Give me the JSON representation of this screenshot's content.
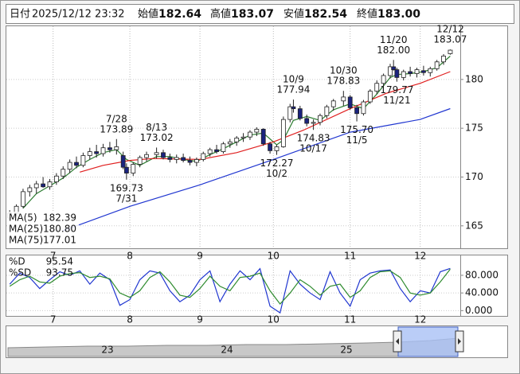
{
  "header": {
    "items": [
      {
        "label": "日付",
        "value": "2025/12/12 23:32",
        "color": "#111111"
      },
      {
        "label": "始値",
        "value": "182.64",
        "color": "#111111"
      },
      {
        "label": "高値",
        "value": "183.07",
        "color": "#d01818"
      },
      {
        "label": "安値",
        "value": "182.54",
        "color": "#1a8a1a"
      },
      {
        "label": "終値",
        "value": "183.00",
        "color": "#111111"
      }
    ]
  },
  "chart_data": [
    {
      "type": "candlestick",
      "xlim": [
        -14,
        122
      ],
      "xticks": [
        {
          "value": 0,
          "label": "7"
        },
        {
          "value": 23,
          "label": "8"
        },
        {
          "value": 44,
          "label": "9"
        },
        {
          "value": 66,
          "label": "10"
        },
        {
          "value": 89,
          "label": "11"
        },
        {
          "value": 110,
          "label": "12"
        }
      ],
      "ylim": [
        162.7,
        185.45
      ],
      "yticks": [
        165,
        170,
        175,
        180
      ],
      "grid": true,
      "up_color": "#ffffff",
      "down_color": "#1a237e",
      "x": [
        -13,
        -11,
        -9,
        -7,
        -5,
        -3,
        -1,
        1,
        3,
        5,
        7,
        9,
        11,
        13,
        15,
        17,
        19,
        21,
        22,
        24,
        26,
        28,
        31,
        33,
        35,
        37,
        39,
        41,
        43,
        45,
        47,
        49,
        51,
        53,
        55,
        57,
        59,
        61,
        63,
        65,
        67,
        69,
        71,
        72,
        74,
        76,
        78,
        80,
        82,
        84,
        87,
        89,
        91,
        93,
        95,
        97,
        99,
        101,
        102,
        103,
        105,
        107,
        109,
        111,
        113,
        115,
        117,
        119
      ],
      "open": [
        165.8,
        166.3,
        167.0,
        168.5,
        168.9,
        169.3,
        169.0,
        169.5,
        170.1,
        170.8,
        171.5,
        171.2,
        172.2,
        172.6,
        172.4,
        173.0,
        172.8,
        172.2,
        171.0,
        170.4,
        171.3,
        172.0,
        172.3,
        172.5,
        172.0,
        171.8,
        172.0,
        171.7,
        171.5,
        171.8,
        172.4,
        172.8,
        172.6,
        173.4,
        173.6,
        174.0,
        174.1,
        174.6,
        174.9,
        173.4,
        172.7,
        173.1,
        175.9,
        177.2,
        177.0,
        176.0,
        175.5,
        175.6,
        176.3,
        177.2,
        177.8,
        178.2,
        177.1,
        176.5,
        177.7,
        178.8,
        179.6,
        180.4,
        181.3,
        181.0,
        180.2,
        180.8,
        180.6,
        180.9,
        180.7,
        181.1,
        181.8,
        182.64
      ],
      "high": [
        166.6,
        167.2,
        168.8,
        169.2,
        169.6,
        170.0,
        169.8,
        170.4,
        171.1,
        171.8,
        172.1,
        172.5,
        173.0,
        173.3,
        173.4,
        173.6,
        173.89,
        172.6,
        171.4,
        171.5,
        172.2,
        172.6,
        173.02,
        172.8,
        172.4,
        172.3,
        172.4,
        172.1,
        172.0,
        172.6,
        173.0,
        173.3,
        173.6,
        173.9,
        174.2,
        174.5,
        174.8,
        175.1,
        175.0,
        173.6,
        173.3,
        176.2,
        177.5,
        177.94,
        177.3,
        176.4,
        175.9,
        176.5,
        177.4,
        178.0,
        178.83,
        178.4,
        177.4,
        177.9,
        179.0,
        179.9,
        180.6,
        181.6,
        182.0,
        181.2,
        181.0,
        181.3,
        181.2,
        181.4,
        181.3,
        182.0,
        182.6,
        183.07
      ],
      "low": [
        165.5,
        166.0,
        166.8,
        168.0,
        168.3,
        168.9,
        168.7,
        169.2,
        169.8,
        170.4,
        170.9,
        171.0,
        171.8,
        172.0,
        172.1,
        172.5,
        172.3,
        170.8,
        169.73,
        170.1,
        171.0,
        171.6,
        171.9,
        171.8,
        171.5,
        171.4,
        171.5,
        171.2,
        171.1,
        171.6,
        172.1,
        172.4,
        172.4,
        173.0,
        173.2,
        173.6,
        173.8,
        174.2,
        173.2,
        172.4,
        172.27,
        173.0,
        175.6,
        176.6,
        175.8,
        175.2,
        174.83,
        175.3,
        176.0,
        176.8,
        177.3,
        176.9,
        175.7,
        176.3,
        177.5,
        178.5,
        179.3,
        180.1,
        180.9,
        179.77,
        179.9,
        180.3,
        180.2,
        180.4,
        180.3,
        180.9,
        181.5,
        182.54
      ],
      "close": [
        166.3,
        167.0,
        168.5,
        168.9,
        169.3,
        169.0,
        169.5,
        170.1,
        170.8,
        171.5,
        171.2,
        172.2,
        172.6,
        172.4,
        173.0,
        172.8,
        173.1,
        171.0,
        170.4,
        171.3,
        172.0,
        172.3,
        172.5,
        172.0,
        171.8,
        172.0,
        171.7,
        171.5,
        171.8,
        172.4,
        172.8,
        172.6,
        173.4,
        173.6,
        174.0,
        174.1,
        174.6,
        174.9,
        173.4,
        172.7,
        173.1,
        175.9,
        177.2,
        177.0,
        176.0,
        175.5,
        175.6,
        176.3,
        177.2,
        177.8,
        178.2,
        177.1,
        176.5,
        177.7,
        178.8,
        179.6,
        180.4,
        181.3,
        181.0,
        180.2,
        180.8,
        180.6,
        181.0,
        180.7,
        181.1,
        181.8,
        182.4,
        183.0
      ],
      "series": [
        {
          "name": "MA(5)",
          "color": "#2e7d32",
          "legend_value": "182.39",
          "x": [
            -9,
            -5,
            -1,
            3,
            7,
            11,
            15,
            19,
            22,
            26,
            31,
            35,
            39,
            43,
            47,
            51,
            55,
            59,
            63,
            67,
            69,
            72,
            76,
            80,
            84,
            89,
            93,
            97,
            101,
            103,
            107,
            111,
            115,
            119
          ],
          "values": [
            166.8,
            168.3,
            169.1,
            169.9,
            171.0,
            171.8,
            172.5,
            172.8,
            171.8,
            171.2,
            172.1,
            172.1,
            171.8,
            171.6,
            172.3,
            172.9,
            173.6,
            174.3,
            174.5,
            173.3,
            173.8,
            175.8,
            176.2,
            175.8,
            176.9,
            177.5,
            177.0,
            178.5,
            180.2,
            180.5,
            180.6,
            180.8,
            181.2,
            182.39
          ]
        },
        {
          "name": "MA(25)",
          "color": "#e02020",
          "legend_value": "180.80",
          "x": [
            8,
            15,
            23,
            30,
            44,
            55,
            66,
            75,
            89,
            100,
            110,
            119
          ],
          "values": [
            170.5,
            171.2,
            171.7,
            171.9,
            171.8,
            172.5,
            173.6,
            174.8,
            177.0,
            178.6,
            179.6,
            180.8
          ]
        },
        {
          "name": "MA(75)",
          "color": "#2036d0",
          "legend_value": "177.01",
          "x": [
            3,
            23,
            44,
            66,
            89,
            110,
            119
          ],
          "values": [
            164.5,
            167.0,
            169.2,
            171.8,
            174.6,
            175.9,
            177.01
          ]
        }
      ],
      "annotations": [
        {
          "date": "7/28",
          "value": 173.89,
          "x": 19,
          "position": "above"
        },
        {
          "date": "7/31",
          "value": 169.73,
          "x": 22,
          "position": "below"
        },
        {
          "date": "8/13",
          "value": 173.02,
          "x": 31,
          "position": "above"
        },
        {
          "date": "10/2",
          "value": 172.27,
          "x": 67,
          "position": "below"
        },
        {
          "date": "10/9",
          "value": 177.94,
          "x": 72,
          "position": "above"
        },
        {
          "date": "10/17",
          "value": 174.83,
          "x": 78,
          "position": "below"
        },
        {
          "date": "10/30",
          "value": 178.83,
          "x": 87,
          "position": "above"
        },
        {
          "date": "11/5",
          "value": 175.7,
          "value_label": "175.70",
          "x": 91,
          "position": "below"
        },
        {
          "date": "11/20",
          "value": 182,
          "value_label": "182.00",
          "x": 102,
          "position": "above"
        },
        {
          "date": "11/21",
          "value": 179.77,
          "x": 103,
          "position": "below"
        },
        {
          "date": "12/12",
          "value": 183.07,
          "x": 119,
          "position": "above"
        }
      ]
    },
    {
      "type": "line",
      "xlim": [
        -14,
        122
      ],
      "ylim": [
        -12,
        125
      ],
      "yticks": [
        {
          "value": 0,
          "label": "0.000"
        },
        {
          "value": 40,
          "label": "40.000"
        },
        {
          "value": 80,
          "label": "80.000"
        }
      ],
      "grid": true,
      "x": [
        -13,
        -10,
        -7,
        -4,
        -1,
        2,
        5,
        8,
        11,
        14,
        17,
        20,
        23,
        26,
        29,
        32,
        35,
        38,
        41,
        44,
        47,
        50,
        53,
        56,
        59,
        62,
        65,
        68,
        71,
        74,
        77,
        80,
        83,
        86,
        89,
        92,
        95,
        98,
        101,
        104,
        107,
        110,
        113,
        116,
        119
      ],
      "series": [
        {
          "name": "%D",
          "color": "#2036d0",
          "legend_value": "95.54",
          "values": [
            60,
            85,
            75,
            50,
            70,
            88,
            80,
            90,
            60,
            85,
            70,
            12,
            25,
            70,
            90,
            85,
            45,
            20,
            35,
            70,
            90,
            20,
            60,
            90,
            70,
            95,
            10,
            -5,
            90,
            60,
            40,
            25,
            88,
            40,
            10,
            70,
            85,
            90,
            92,
            50,
            20,
            45,
            40,
            88,
            95.54
          ]
        },
        {
          "name": "%SD",
          "color": "#2e8b2e",
          "legend_value": "93.75",
          "values": [
            55,
            70,
            78,
            65,
            62,
            78,
            84,
            86,
            75,
            78,
            72,
            40,
            30,
            45,
            75,
            88,
            65,
            35,
            30,
            50,
            78,
            55,
            45,
            75,
            78,
            85,
            45,
            15,
            40,
            70,
            55,
            35,
            55,
            60,
            30,
            45,
            75,
            88,
            90,
            75,
            40,
            35,
            40,
            65,
            93.75
          ]
        }
      ]
    }
  ],
  "navigator": {
    "labels": [
      "23",
      "24",
      "25"
    ]
  }
}
